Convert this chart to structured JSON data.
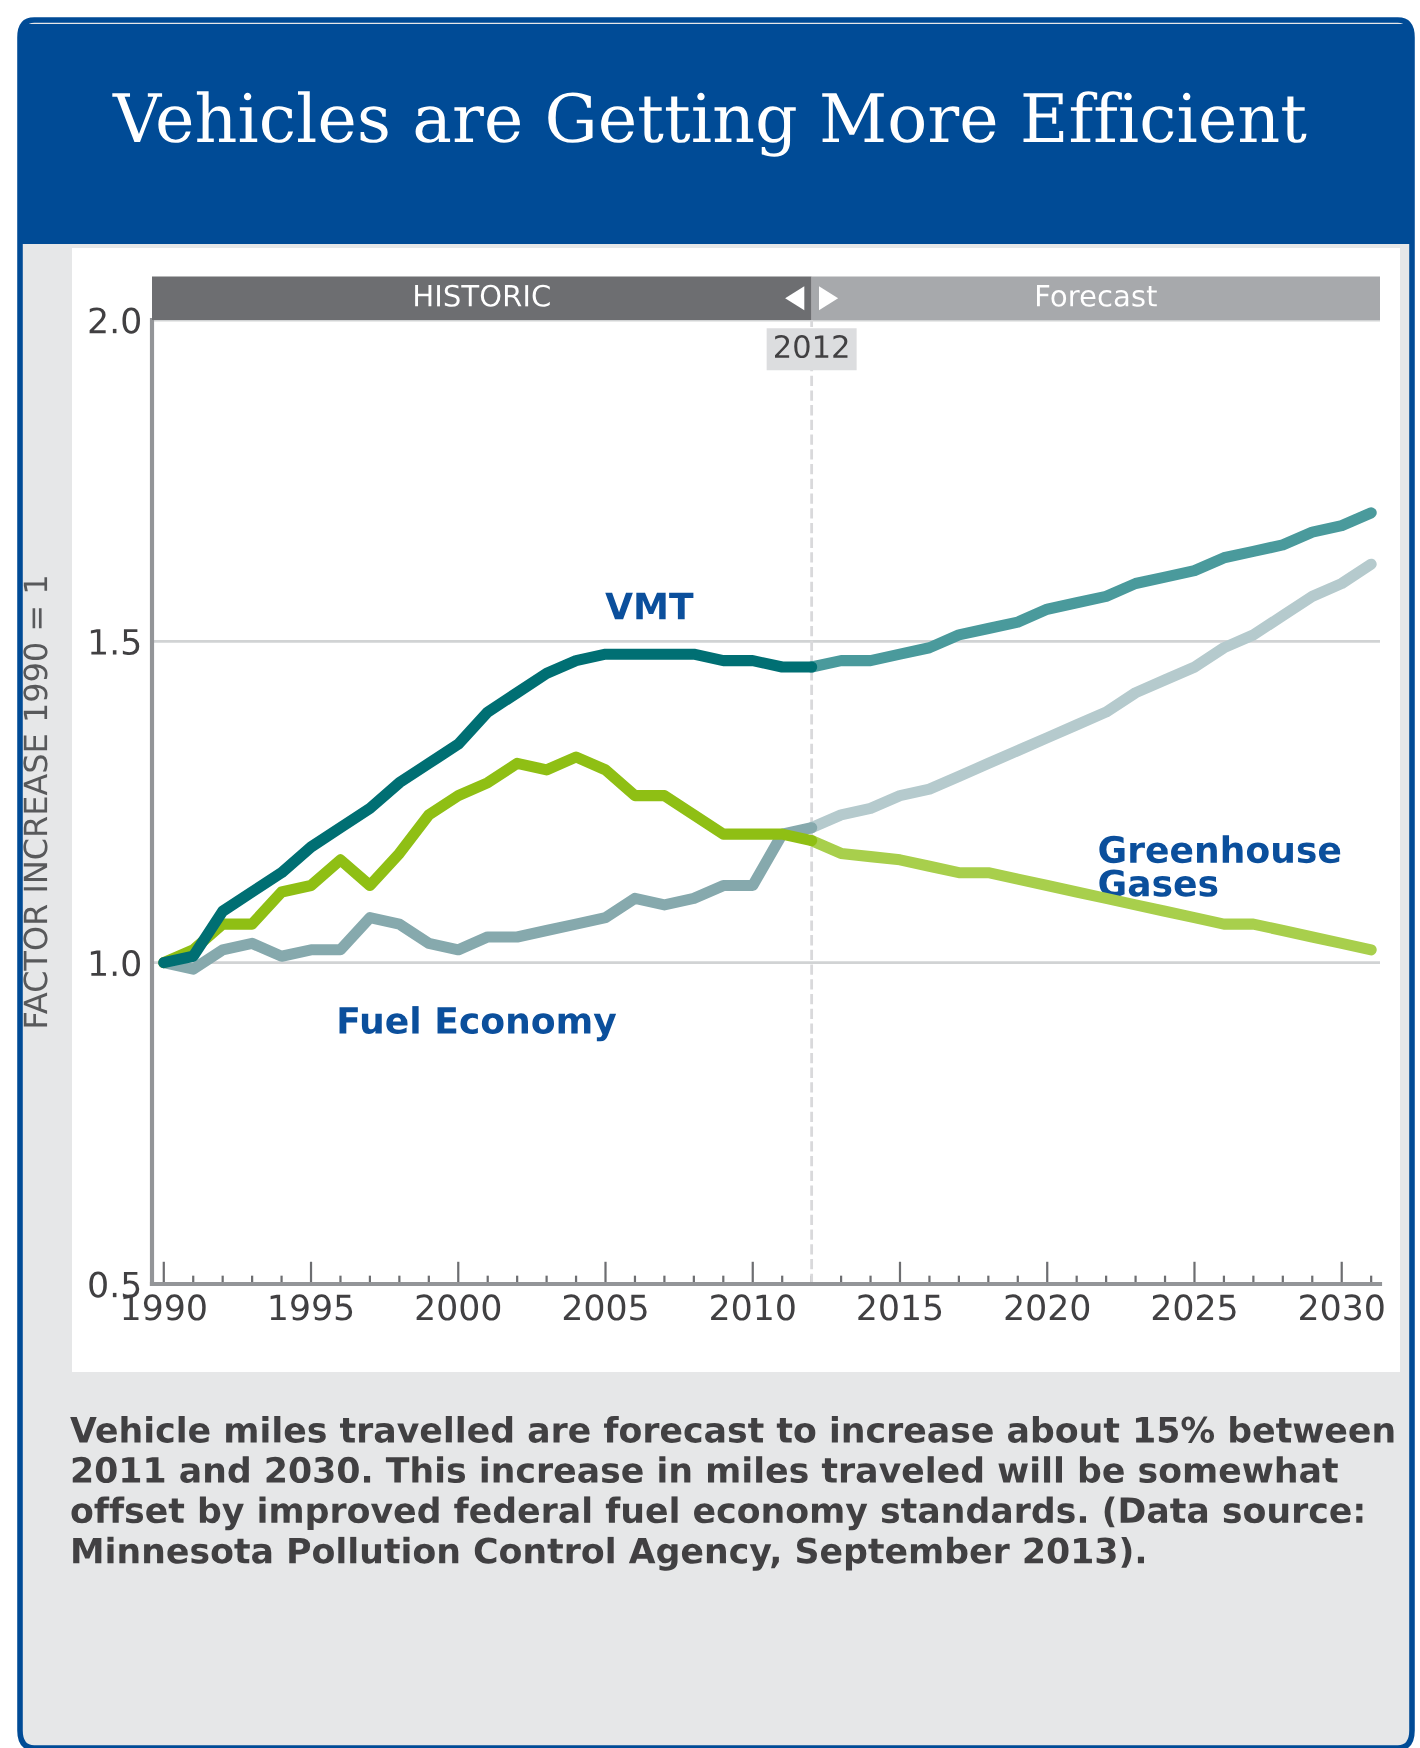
{
  "chart_data": {
    "type": "line",
    "title": "Vehicles are Getting More Efficient",
    "ylabel": "FACTOR INCREASE 1990 = 1",
    "xlim": [
      1989.6,
      2031.3
    ],
    "ylim": [
      0.5,
      2.0
    ],
    "xticks": [
      1990,
      {
        "value": 1991,
        "label": null
      },
      {
        "value": 1992,
        "label": null
      },
      {
        "value": 1993,
        "label": null
      },
      {
        "value": 1994,
        "label": null
      },
      1995,
      {
        "value": 1996,
        "label": null
      },
      {
        "value": 1997,
        "label": null
      },
      {
        "value": 1998,
        "label": null
      },
      {
        "value": 1999,
        "label": null
      },
      2000,
      {
        "value": 2001,
        "label": null
      },
      {
        "value": 2002,
        "label": null
      },
      {
        "value": 2003,
        "label": null
      },
      {
        "value": 2004,
        "label": null
      },
      2005,
      {
        "value": 2006,
        "label": null
      },
      {
        "value": 2007,
        "label": null
      },
      {
        "value": 2008,
        "label": null
      },
      {
        "value": 2009,
        "label": null
      },
      2010,
      {
        "value": 2011,
        "label": null
      },
      {
        "value": 2012,
        "label": null
      },
      {
        "value": 2013,
        "label": null
      },
      {
        "value": 2014,
        "label": null
      },
      2015,
      {
        "value": 2016,
        "label": null
      },
      {
        "value": 2017,
        "label": null
      },
      {
        "value": 2018,
        "label": null
      },
      {
        "value": 2019,
        "label": null
      },
      2020,
      {
        "value": 2021,
        "label": null
      },
      {
        "value": 2022,
        "label": null
      },
      {
        "value": 2023,
        "label": null
      },
      {
        "value": 2024,
        "label": null
      },
      2025,
      {
        "value": 2026,
        "label": null
      },
      {
        "value": 2027,
        "label": null
      },
      {
        "value": 2028,
        "label": null
      },
      {
        "value": 2029,
        "label": null
      },
      2030,
      {
        "value": 2031,
        "label": null
      }
    ],
    "yticks": [
      0.5,
      {
        "value": 1,
        "label": "1.0"
      },
      1.5,
      {
        "value": 2,
        "label": "2.0"
      }
    ],
    "grid": "y",
    "legend": false,
    "marker": "none",
    "line_style": "solid",
    "series": [
      {
        "name": "VMT",
        "color": "#006f73",
        "x": [
          1990,
          1991,
          1992,
          1993,
          1994,
          1995,
          1996,
          1997,
          1998,
          1999,
          2000,
          2001,
          2002,
          2003,
          2004,
          2005,
          2006,
          2007,
          2008,
          2009,
          2010,
          2011,
          2012
        ],
        "values": [
          1.0,
          1.01,
          1.08,
          1.11,
          1.14,
          1.18,
          1.21,
          1.24,
          1.28,
          1.31,
          1.34,
          1.39,
          1.42,
          1.45,
          1.47,
          1.48,
          1.48,
          1.48,
          1.48,
          1.47,
          1.47,
          1.46,
          1.46
        ]
      },
      {
        "color": "#4a9a9c",
        "x": [
          2012,
          2013,
          2014,
          2015,
          2016,
          2017,
          2018,
          2019,
          2020,
          2021,
          2022,
          2023,
          2024,
          2025,
          2026,
          2027,
          2028,
          2029,
          2030,
          2031
        ],
        "values": [
          1.46,
          1.47,
          1.47,
          1.48,
          1.49,
          1.51,
          1.52,
          1.53,
          1.55,
          1.56,
          1.57,
          1.59,
          1.6,
          1.61,
          1.63,
          1.64,
          1.65,
          1.67,
          1.68,
          1.7
        ]
      },
      {
        "color": "#8fbf14",
        "x": [
          1990,
          1991,
          1992,
          1993,
          1994,
          1995,
          1996,
          1997,
          1998,
          1999,
          2000,
          2001,
          2002,
          2003,
          2004,
          2005,
          2006,
          2007,
          2008,
          2009,
          2010,
          2011,
          2012
        ],
        "values": [
          1.0,
          1.02,
          1.06,
          1.06,
          1.11,
          1.12,
          1.16,
          1.12,
          1.17,
          1.23,
          1.26,
          1.28,
          1.31,
          1.3,
          1.32,
          1.3,
          1.26,
          1.26,
          1.23,
          1.2,
          1.2,
          1.2,
          1.19
        ]
      },
      {
        "name": "Greenhouse Gases",
        "color": "#a8cf4c",
        "x": [
          2012,
          2013,
          2014,
          2015,
          2016,
          2017,
          2018,
          2019,
          2020,
          2021,
          2022,
          2023,
          2024,
          2025,
          2026,
          2027,
          2028,
          2029,
          2030,
          2031
        ],
        "values": [
          1.19,
          1.17,
          1.165,
          1.16,
          1.15,
          1.14,
          1.14,
          1.13,
          1.12,
          1.11,
          1.1,
          1.09,
          1.08,
          1.07,
          1.06,
          1.06,
          1.05,
          1.04,
          1.03,
          1.02
        ]
      },
      {
        "name": "Fuel Economy",
        "color": "#86a9ad",
        "x": [
          1990,
          1991,
          1992,
          1993,
          1994,
          1995,
          1996,
          1997,
          1998,
          1999,
          2000,
          2001,
          2002,
          2003,
          2004,
          2005,
          2006,
          2007,
          2008,
          2009,
          2010,
          2011,
          2012
        ],
        "values": [
          1.0,
          0.99,
          1.02,
          1.03,
          1.01,
          1.02,
          1.02,
          1.07,
          1.06,
          1.03,
          1.02,
          1.04,
          1.04,
          1.05,
          1.06,
          1.07,
          1.1,
          1.09,
          1.1,
          1.12,
          1.12,
          1.2,
          1.21
        ]
      },
      {
        "color": "#b5cacd",
        "x": [
          2012,
          2013,
          2014,
          2015,
          2016,
          2017,
          2018,
          2019,
          2020,
          2021,
          2022,
          2023,
          2024,
          2025,
          2026,
          2027,
          2028,
          2029,
          2030,
          2031
        ],
        "values": [
          1.21,
          1.23,
          1.24,
          1.26,
          1.27,
          1.29,
          1.31,
          1.33,
          1.35,
          1.37,
          1.39,
          1.42,
          1.44,
          1.46,
          1.49,
          1.51,
          1.54,
          1.57,
          1.59,
          1.62
        ]
      }
    ],
    "ref_lines": [
      {
        "axis": "x",
        "value": 2012,
        "label": "2012",
        "color": "#d9d9db",
        "line_style": "dashed"
      }
    ],
    "annotations": [
      "HISTORIC",
      "Forecast",
      "Vehicle miles travelled are forecast to increase about 15% between 2011 and 2030. This increase in miles traveled will be somewhat offset by improved federal fuel economy standards. (Data source: Minnesota Pollution Control Agency, September 2013)."
    ]
  }
}
